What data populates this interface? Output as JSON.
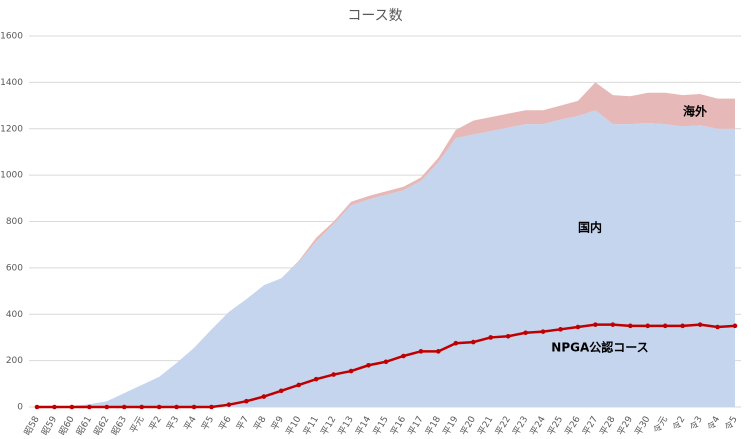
{
  "chart_data": {
    "type": "stacked-area-line",
    "title": "コース数",
    "categories": [
      "昭58",
      "昭59",
      "昭60",
      "昭61",
      "昭62",
      "昭63",
      "平元",
      "平2",
      "平3",
      "平4",
      "平5",
      "平6",
      "平7",
      "平8",
      "平9",
      "平10",
      "平11",
      "平12",
      "平13",
      "平14",
      "平15",
      "平16",
      "平17",
      "平18",
      "平19",
      "平20",
      "平21",
      "平22",
      "平23",
      "平24",
      "平25",
      "平26",
      "平27",
      "平28",
      "平29",
      "平30",
      "令元",
      "令2",
      "令3",
      "令4",
      "令5"
    ],
    "series": [
      {
        "name": "国内",
        "color": "#c5d5ee",
        "kind": "area",
        "values": [
          0,
          2,
          5,
          12,
          25,
          60,
          95,
          130,
          190,
          255,
          335,
          410,
          465,
          525,
          555,
          625,
          715,
          790,
          870,
          895,
          915,
          935,
          975,
          1055,
          1160,
          1175,
          1190,
          1205,
          1220,
          1220,
          1240,
          1255,
          1280,
          1220,
          1220,
          1225,
          1220,
          1210,
          1215,
          1200,
          1200
        ]
      },
      {
        "name": "海外",
        "color": "#e6b8b7",
        "kind": "area",
        "values": [
          0,
          0,
          0,
          0,
          0,
          0,
          0,
          0,
          0,
          0,
          0,
          0,
          0,
          0,
          0,
          5,
          15,
          10,
          15,
          15,
          15,
          15,
          15,
          20,
          35,
          60,
          60,
          60,
          60,
          60,
          60,
          65,
          120,
          125,
          120,
          130,
          135,
          135,
          135,
          130,
          130
        ]
      },
      {
        "name": "NPGA公認コース",
        "color": "#c00000",
        "kind": "line",
        "values": [
          0,
          0,
          0,
          0,
          0,
          0,
          0,
          0,
          0,
          0,
          0,
          10,
          25,
          45,
          70,
          95,
          120,
          140,
          155,
          180,
          195,
          220,
          240,
          240,
          275,
          280,
          300,
          305,
          320,
          325,
          335,
          345,
          355,
          355,
          350,
          350,
          350,
          350,
          355,
          345,
          350
        ]
      }
    ],
    "ylim": [
      0,
      1600
    ],
    "yticks": [
      0,
      200,
      400,
      600,
      800,
      1000,
      1200,
      1400,
      1600
    ],
    "grid": true
  }
}
